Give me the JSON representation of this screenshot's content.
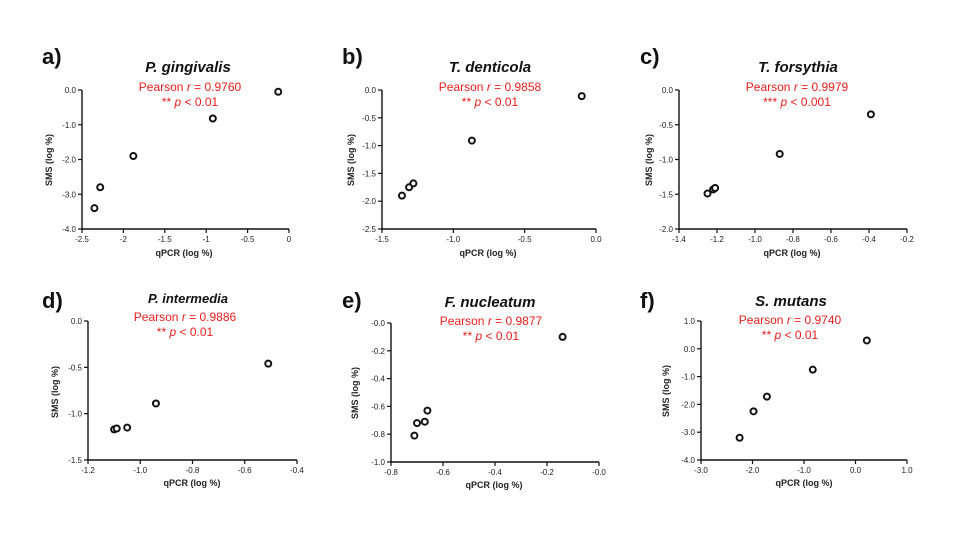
{
  "chart_data": [
    {
      "type": "scatter",
      "letter": "a)",
      "title": "P. gingivalis",
      "stat_line1_prefix": "Pearson ",
      "stat_r": "r",
      "stat_line1_value": " = 0.9760",
      "stat_line2_stars": "** ",
      "stat_p": "p",
      "stat_line2_value": " < 0.01",
      "xlabel": "qPCR (log %)",
      "ylabel": "SMS (log %)",
      "xlim": [
        -2.5,
        0.0
      ],
      "ylim": [
        -4.0,
        0.0
      ],
      "xticks": [
        -2.5,
        -2.0,
        -1.5,
        -1.0,
        -0.5,
        0.0
      ],
      "xtick_labels": [
        "-2.5",
        "-2",
        "-1.5",
        "-1",
        "-0.5",
        "0"
      ],
      "yticks": [
        -4.0,
        -3.0,
        -2.0,
        -1.0,
        0.0
      ],
      "ytick_labels": [
        "-4.0",
        "-3.0",
        "-2.0",
        "-1.0",
        "0.0"
      ],
      "points": [
        {
          "x": -2.35,
          "y": -3.4
        },
        {
          "x": -2.28,
          "y": -2.8
        },
        {
          "x": -1.88,
          "y": -1.9
        },
        {
          "x": -0.92,
          "y": -0.82
        },
        {
          "x": -0.13,
          "y": -0.05
        }
      ]
    },
    {
      "type": "scatter",
      "letter": "b)",
      "title": "T. denticola",
      "stat_line1_prefix": "Pearson ",
      "stat_r": "r",
      "stat_line1_value": " = 0.9858",
      "stat_line2_stars": "** ",
      "stat_p": "p",
      "stat_line2_value": " < 0.01",
      "xlabel": "qPCR (log %)",
      "ylabel": "SMS (log %)",
      "xlim": [
        -1.5,
        0.0
      ],
      "ylim": [
        -2.5,
        0.0
      ],
      "xticks": [
        -1.5,
        -1.0,
        -0.5,
        0.0
      ],
      "xtick_labels": [
        "-1.5",
        "-1.0",
        "-0.5",
        "0.0"
      ],
      "yticks": [
        -2.5,
        -2.0,
        -1.5,
        -1.0,
        -0.5,
        0.0
      ],
      "ytick_labels": [
        "-2.5",
        "-2.0",
        "-1.5",
        "-1.0",
        "-0.5",
        "0.0"
      ],
      "points": [
        {
          "x": -1.36,
          "y": -1.9
        },
        {
          "x": -1.31,
          "y": -1.75
        },
        {
          "x": -1.28,
          "y": -1.68
        },
        {
          "x": -0.87,
          "y": -0.91
        },
        {
          "x": -0.1,
          "y": -0.11
        }
      ]
    },
    {
      "type": "scatter",
      "letter": "c)",
      "title": "T. forsythia",
      "stat_line1_prefix": "Pearson ",
      "stat_r": "r",
      "stat_line1_value": " = 0.9979",
      "stat_line2_stars": "*** ",
      "stat_p": "p",
      "stat_line2_value": " < 0.001",
      "xlabel": "qPCR (log %)",
      "ylabel": "SMS (log %)",
      "xlim": [
        -1.4,
        -0.2
      ],
      "ylim": [
        -2.0,
        0.0
      ],
      "xticks": [
        -1.4,
        -1.2,
        -1.0,
        -0.8,
        -0.6,
        -0.4,
        -0.2
      ],
      "xtick_labels": [
        "-1.4",
        "-1.2",
        "-1.0",
        "-0.8",
        "-0.6",
        "-0.4",
        "-0.2"
      ],
      "yticks": [
        -2.0,
        -1.5,
        -1.0,
        -0.5,
        0.0
      ],
      "ytick_labels": [
        "-2.0",
        "-1.5",
        "-1.0",
        "-0.5",
        "0.0"
      ],
      "points": [
        {
          "x": -1.25,
          "y": -1.49
        },
        {
          "x": -1.22,
          "y": -1.43
        },
        {
          "x": -1.21,
          "y": -1.41
        },
        {
          "x": -0.87,
          "y": -0.92
        },
        {
          "x": -0.39,
          "y": -0.35
        }
      ]
    },
    {
      "type": "scatter",
      "letter": "d)",
      "title": "P. intermedia",
      "title_small": true,
      "stat_line1_prefix": "Pearson ",
      "stat_r": "r",
      "stat_line1_value": " = 0.9886",
      "stat_line2_stars": "** ",
      "stat_p": "p",
      "stat_line2_value": " < 0.01",
      "xlabel": "qPCR (log %)",
      "ylabel": "SMS (log %)",
      "xlim": [
        -1.2,
        -0.4
      ],
      "ylim": [
        -1.5,
        0.0
      ],
      "xticks": [
        -1.2,
        -1.0,
        -0.8,
        -0.6,
        -0.4
      ],
      "xtick_labels": [
        "-1.2",
        "-1.0",
        "-0.8",
        "-0.6",
        "-0.4"
      ],
      "yticks": [
        -1.5,
        -1.0,
        -0.5,
        0.0
      ],
      "ytick_labels": [
        "-1.5",
        "-1.0",
        "-0.5",
        "0.0"
      ],
      "points": [
        {
          "x": -1.1,
          "y": -1.17
        },
        {
          "x": -1.09,
          "y": -1.16
        },
        {
          "x": -1.05,
          "y": -1.15
        },
        {
          "x": -0.94,
          "y": -0.89
        },
        {
          "x": -0.51,
          "y": -0.46
        }
      ]
    },
    {
      "type": "scatter",
      "letter": "e)",
      "title": "F. nucleatum",
      "stat_line1_prefix": "Pearson ",
      "stat_r": "r",
      "stat_line1_value": " = 0.9877",
      "stat_line2_stars": "** ",
      "stat_p": "p",
      "stat_line2_value": " < 0.01",
      "xlabel": "qPCR (log %)",
      "ylabel": "SMS (log %)",
      "xlim": [
        -0.8,
        0.0
      ],
      "ylim": [
        -1.0,
        0.0
      ],
      "xticks": [
        -0.8,
        -0.6,
        -0.4,
        -0.2,
        0.0
      ],
      "xtick_labels": [
        "-0.8",
        "-0.6",
        "-0.4",
        "-0.2",
        "-0.0"
      ],
      "yticks": [
        -1.0,
        -0.8,
        -0.6,
        -0.4,
        -0.2,
        0.0
      ],
      "ytick_labels": [
        "-1.0",
        "-0.8",
        "-0.6",
        "-0.4",
        "-0.2",
        "-0.0"
      ],
      "points": [
        {
          "x": -0.71,
          "y": -0.81
        },
        {
          "x": -0.7,
          "y": -0.72
        },
        {
          "x": -0.67,
          "y": -0.71
        },
        {
          "x": -0.66,
          "y": -0.63
        },
        {
          "x": -0.14,
          "y": -0.1
        }
      ]
    },
    {
      "type": "scatter",
      "letter": "f)",
      "title": "S. mutans",
      "stat_line1_prefix": "Pearson ",
      "stat_r": "r",
      "stat_line1_value": " = 0.9740",
      "stat_line2_stars": "** ",
      "stat_p": "p",
      "stat_line2_value": " < 0.01",
      "xlabel": "qPCR (log %)",
      "ylabel": "SMS (log %)",
      "xlim": [
        -3.0,
        1.0
      ],
      "ylim": [
        -4.0,
        1.0
      ],
      "xticks": [
        -3.0,
        -2.0,
        -1.0,
        0.0,
        1.0
      ],
      "xtick_labels": [
        "-3.0",
        "-2.0",
        "-1.0",
        "0.0",
        "1.0"
      ],
      "yticks": [
        -4.0,
        -3.0,
        -2.0,
        -1.0,
        0.0,
        1.0
      ],
      "ytick_labels": [
        "-4.0",
        "-3.0",
        "-2.0",
        "-1.0",
        "0.0",
        "1.0"
      ],
      "points": [
        {
          "x": -2.25,
          "y": -3.2
        },
        {
          "x": -1.98,
          "y": -2.25
        },
        {
          "x": -1.72,
          "y": -1.72
        },
        {
          "x": -0.83,
          "y": -0.75
        },
        {
          "x": 0.22,
          "y": 0.3
        }
      ]
    }
  ]
}
